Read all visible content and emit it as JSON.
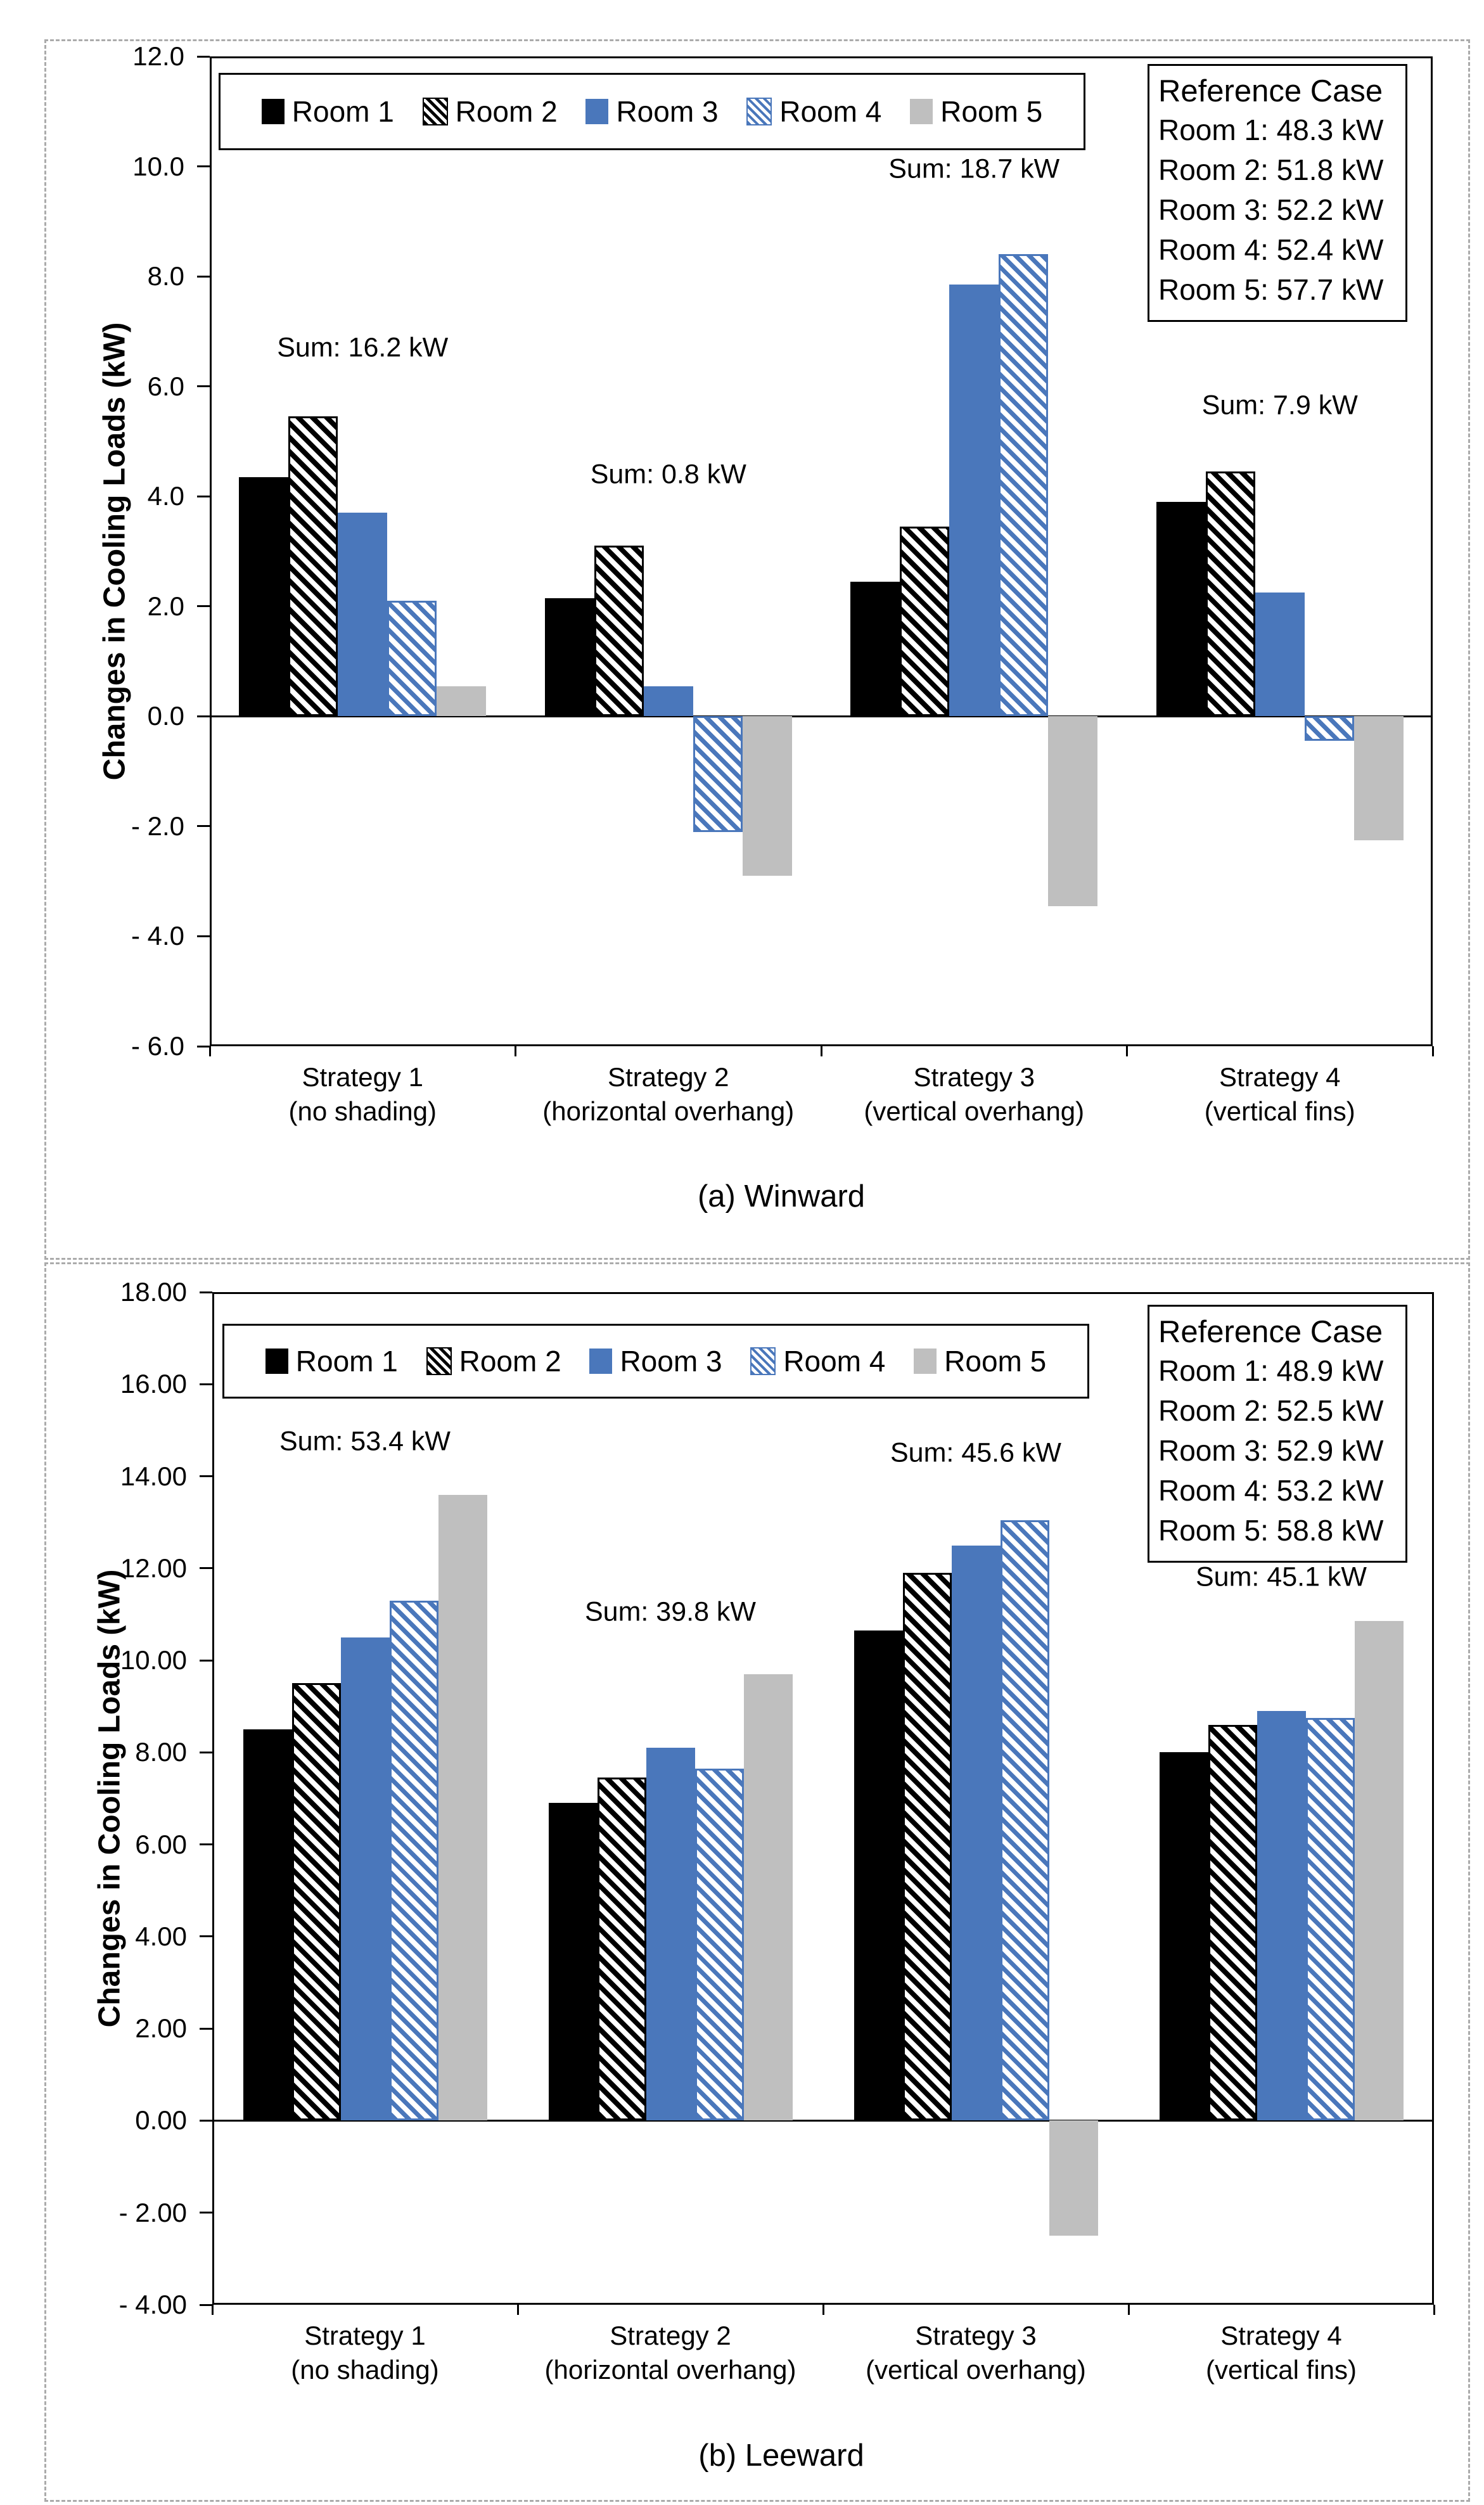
{
  "figure": {
    "background": "#ffffff",
    "panel_border_color": "#ababab"
  },
  "colors": {
    "room1": "#000000",
    "room2": "black-diagonal-hatch",
    "room3": "#4a77bb",
    "room4": "blue-diagonal-hatch",
    "room5": "#bfbfbf",
    "axis": "#000000"
  },
  "chart_data": [
    {
      "type": "bar",
      "title": "(a) Winward",
      "ylabel": "Changes in Cooling Loads (kW)",
      "ylim": [
        -6.0,
        12.0
      ],
      "ytick_step": 2.0,
      "ytick_labels": [
        "12.0",
        "10.0",
        "8.0",
        "6.0",
        "4.0",
        "2.0",
        "0.0",
        "- 2.0",
        "- 4.0",
        "- 6.0"
      ],
      "grid": "off",
      "legend_position": "top-left-inside",
      "categories": [
        {
          "line1": "Strategy 1",
          "line2": "(no shading)"
        },
        {
          "line1": "Strategy 2",
          "line2": "(horizontal overhang)"
        },
        {
          "line1": "Strategy 3",
          "line2": "(vertical overhang)"
        },
        {
          "line1": "Strategy 4",
          "line2": "(vertical fins)"
        }
      ],
      "series": [
        {
          "name": "Room 1",
          "values": [
            4.35,
            2.15,
            2.45,
            3.9
          ]
        },
        {
          "name": "Room 2",
          "values": [
            5.45,
            3.1,
            3.45,
            4.45
          ]
        },
        {
          "name": "Room 3",
          "values": [
            3.7,
            0.55,
            7.85,
            2.25
          ]
        },
        {
          "name": "Room 4",
          "values": [
            2.1,
            -2.1,
            8.4,
            -0.45
          ]
        },
        {
          "name": "Room 5",
          "values": [
            0.55,
            -2.9,
            -3.45,
            -2.25
          ]
        }
      ],
      "sum_labels": [
        "Sum: 16.2 kW",
        "Sum: 0.8 kW",
        "Sum: 18.7 kW",
        "Sum: 7.9 kW"
      ],
      "reference_case": {
        "title": "Reference Case",
        "lines": [
          "Room 1: 48.3 kW",
          "Room 2: 51.8 kW",
          "Room 3: 52.2 kW",
          "Room 4: 52.4 kW",
          "Room 5: 57.7 kW"
        ]
      }
    },
    {
      "type": "bar",
      "title": "(b) Leeward",
      "ylabel": "Changes in Cooling Loads (kW)",
      "ylim": [
        -4.0,
        18.0
      ],
      "ytick_step": 2.0,
      "ytick_labels": [
        "18.00",
        "16.00",
        "14.00",
        "12.00",
        "10.00",
        "8.00",
        "6.00",
        "4.00",
        "2.00",
        "0.00",
        "- 2.00",
        "- 4.00"
      ],
      "grid": "off",
      "legend_position": "top-left-inside",
      "categories": [
        {
          "line1": "Strategy 1",
          "line2": "(no shading)"
        },
        {
          "line1": "Strategy 2",
          "line2": "(horizontal overhang)"
        },
        {
          "line1": "Strategy 3",
          "line2": "(vertical overhang)"
        },
        {
          "line1": "Strategy 4",
          "line2": "(vertical fins)"
        }
      ],
      "series": [
        {
          "name": "Room 1",
          "values": [
            8.5,
            6.9,
            10.65,
            8.0
          ]
        },
        {
          "name": "Room 2",
          "values": [
            9.5,
            7.45,
            11.9,
            8.6
          ]
        },
        {
          "name": "Room 3",
          "values": [
            10.5,
            8.1,
            12.5,
            8.9
          ]
        },
        {
          "name": "Room 4",
          "values": [
            11.3,
            7.65,
            13.05,
            8.75
          ]
        },
        {
          "name": "Room 5",
          "values": [
            13.6,
            9.7,
            -2.5,
            10.85
          ]
        }
      ],
      "sum_labels": [
        "Sum: 53.4 kW",
        "Sum: 39.8 kW",
        "Sum: 45.6 kW",
        "Sum: 45.1 kW"
      ],
      "reference_case": {
        "title": "Reference Case",
        "lines": [
          "Room 1: 48.9 kW",
          "Room 2: 52.5 kW",
          "Room 3: 52.9 kW",
          "Room 4: 53.2 kW",
          "Room 5: 58.8 kW"
        ]
      }
    }
  ]
}
